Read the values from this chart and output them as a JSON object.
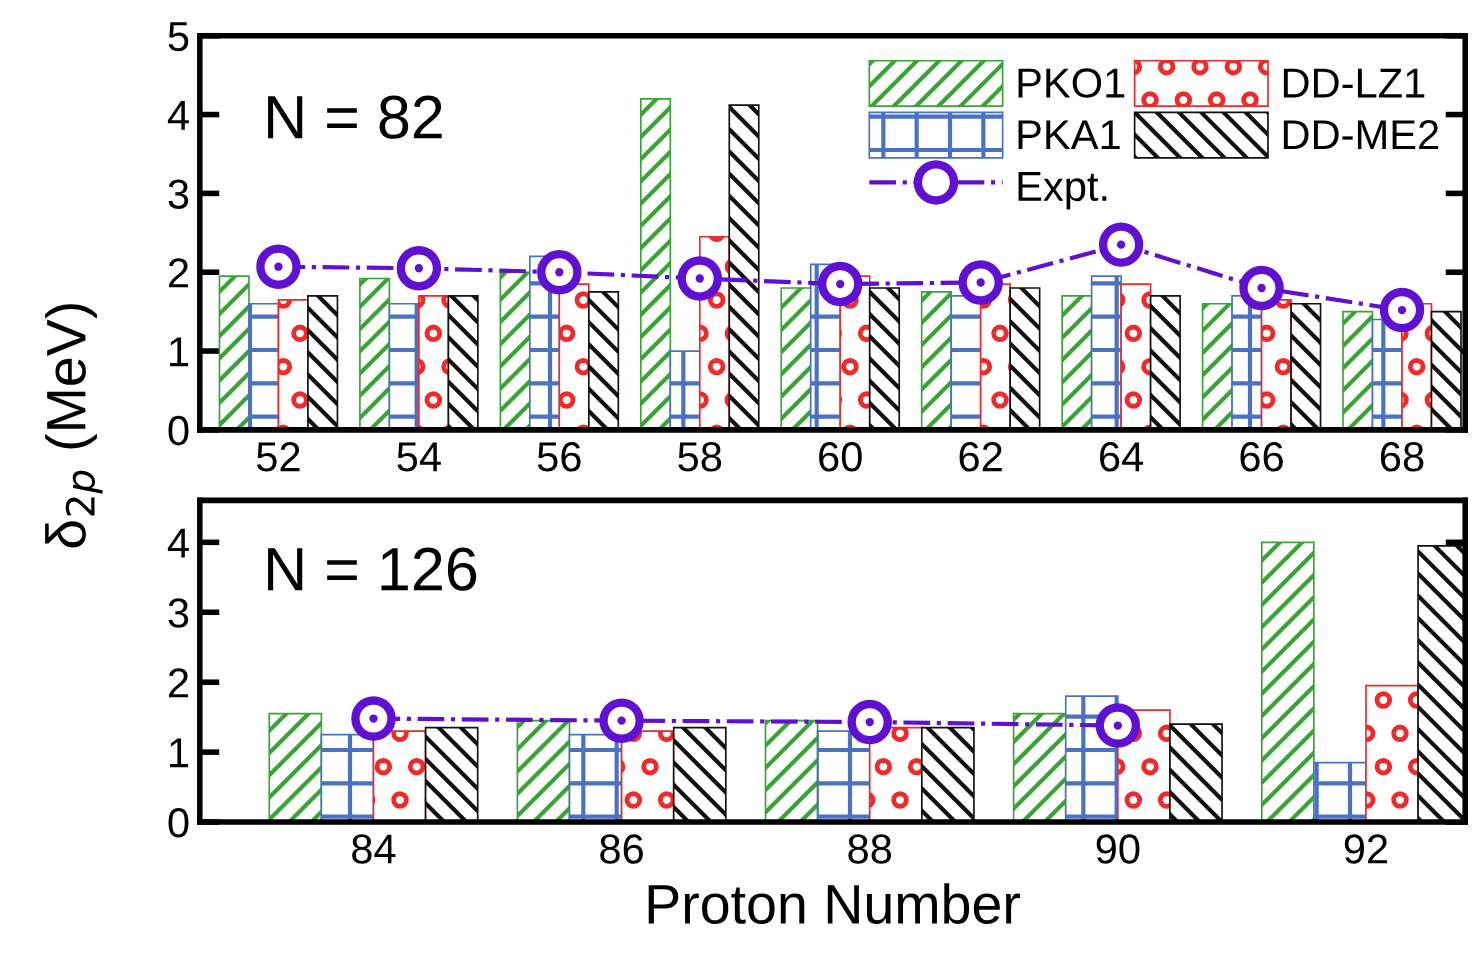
{
  "chart_data": [
    {
      "type": "bar",
      "ylabel": "δ$_{2p}$ (MeV)",
      "annotations": [
        "N = 82"
      ],
      "categories": [
        "52",
        "54",
        "56",
        "58",
        "60",
        "62",
        "64",
        "66",
        "68"
      ],
      "ylim": [
        0,
        5
      ],
      "yticks": [
        0,
        1,
        2,
        3,
        4,
        5
      ],
      "grid": false,
      "legend": "top right",
      "series": [
        {
          "name": "PKO1",
          "color": "#3aa335",
          "values": [
            1.95,
            1.92,
            2.0,
            4.2,
            1.8,
            1.75,
            1.7,
            1.6,
            1.5
          ]
        },
        {
          "name": "PKA1",
          "color": "#4a72c4",
          "values": [
            1.6,
            1.6,
            2.2,
            1.0,
            2.1,
            1.7,
            1.95,
            1.7,
            1.4
          ]
        },
        {
          "name": "DD-LZ1",
          "color": "#ee2a2a",
          "values": [
            1.65,
            1.7,
            1.85,
            2.45,
            1.95,
            1.85,
            1.85,
            1.65,
            1.6
          ]
        },
        {
          "name": "DD-ME2",
          "color": "#111111",
          "values": [
            1.7,
            1.7,
            1.75,
            4.12,
            1.8,
            1.8,
            1.7,
            1.6,
            1.5
          ]
        },
        {
          "name": "Expt.",
          "type": "line",
          "color": "#6010d0",
          "marker": "circle",
          "line_style": "dashdot",
          "values": [
            2.07,
            2.05,
            2.0,
            1.92,
            1.85,
            1.87,
            2.35,
            1.8,
            1.52
          ]
        }
      ]
    },
    {
      "type": "bar",
      "xlabel": "Proton Number",
      "annotations": [
        "N = 126"
      ],
      "categories": [
        "84",
        "86",
        "88",
        "90",
        "92"
      ],
      "ylim": [
        0,
        4.6
      ],
      "yticks": [
        0,
        1,
        2,
        3,
        4
      ],
      "grid": false,
      "series": [
        {
          "color": "#3aa335",
          "values": [
            1.55,
            1.45,
            1.45,
            1.55,
            4.0
          ]
        },
        {
          "color": "#4a72c4",
          "values": [
            1.25,
            1.25,
            1.3,
            1.8,
            0.85
          ]
        },
        {
          "color": "#ee2a2a",
          "values": [
            1.3,
            1.3,
            1.35,
            1.6,
            1.95
          ]
        },
        {
          "color": "#111111",
          "values": [
            1.35,
            1.35,
            1.35,
            1.4,
            3.95
          ]
        },
        {
          "type": "line",
          "color": "#6010d0",
          "marker": "circle",
          "line_style": "dashdot",
          "values": [
            1.48,
            1.45,
            1.43,
            1.38,
            null
          ]
        }
      ]
    }
  ]
}
